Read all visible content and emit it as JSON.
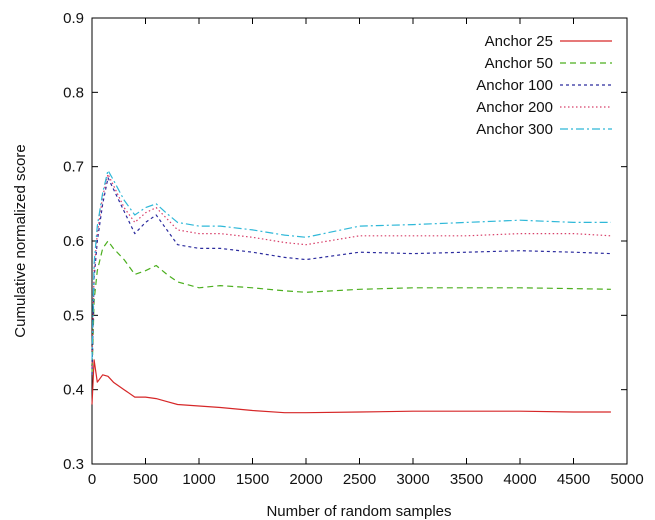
{
  "chart_data": {
    "type": "line",
    "title": "",
    "xlabel": "Number of random samples",
    "ylabel": "Cumulative normalized score",
    "xlim": [
      0,
      5000
    ],
    "ylim": [
      0.3,
      0.9
    ],
    "x_ticks": [
      0,
      500,
      1000,
      1500,
      2000,
      2500,
      3000,
      3500,
      4000,
      4500,
      5000
    ],
    "y_ticks": [
      0.3,
      0.4,
      0.5,
      0.6,
      0.7,
      0.8,
      0.9
    ],
    "grid": false,
    "legend_position": "top-right",
    "series": [
      {
        "name": "Anchor 25",
        "color": "#d62728",
        "dash": "solid",
        "x": [
          0,
          20,
          50,
          100,
          150,
          200,
          300,
          400,
          500,
          600,
          700,
          800,
          1000,
          1200,
          1500,
          1800,
          2000,
          2500,
          3000,
          3500,
          4000,
          4500,
          4850
        ],
        "y": [
          0.38,
          0.44,
          0.41,
          0.42,
          0.418,
          0.41,
          0.4,
          0.39,
          0.39,
          0.388,
          0.384,
          0.38,
          0.378,
          0.376,
          0.372,
          0.369,
          0.369,
          0.37,
          0.371,
          0.371,
          0.371,
          0.37,
          0.37
        ]
      },
      {
        "name": "Anchor 50",
        "color": "#4caf1f",
        "dash": "6,4",
        "x": [
          0,
          20,
          50,
          100,
          150,
          200,
          300,
          400,
          500,
          600,
          700,
          800,
          1000,
          1200,
          1500,
          1800,
          2000,
          2500,
          3000,
          3500,
          4000,
          4500,
          4850
        ],
        "y": [
          0.42,
          0.52,
          0.56,
          0.59,
          0.6,
          0.59,
          0.575,
          0.555,
          0.56,
          0.567,
          0.555,
          0.545,
          0.537,
          0.54,
          0.537,
          0.533,
          0.531,
          0.535,
          0.537,
          0.537,
          0.537,
          0.536,
          0.535
        ]
      },
      {
        "name": "Anchor 100",
        "color": "#2b2b9e",
        "dash": "3,3",
        "x": [
          0,
          20,
          50,
          100,
          150,
          200,
          300,
          400,
          500,
          600,
          700,
          800,
          1000,
          1200,
          1500,
          1800,
          2000,
          2500,
          3000,
          3500,
          4000,
          4500,
          4850
        ],
        "y": [
          0.42,
          0.55,
          0.6,
          0.65,
          0.685,
          0.67,
          0.64,
          0.61,
          0.625,
          0.635,
          0.615,
          0.595,
          0.59,
          0.59,
          0.585,
          0.578,
          0.575,
          0.585,
          0.583,
          0.585,
          0.587,
          0.585,
          0.583
        ]
      },
      {
        "name": "Anchor 200",
        "color": "#d8406a",
        "dash": "1.5,2.5",
        "x": [
          0,
          20,
          50,
          100,
          150,
          200,
          300,
          400,
          500,
          600,
          700,
          800,
          1000,
          1200,
          1500,
          1800,
          2000,
          2500,
          3000,
          3500,
          4000,
          4500,
          4850
        ],
        "y": [
          0.43,
          0.56,
          0.61,
          0.66,
          0.69,
          0.675,
          0.645,
          0.625,
          0.638,
          0.645,
          0.63,
          0.615,
          0.61,
          0.61,
          0.605,
          0.598,
          0.595,
          0.607,
          0.607,
          0.607,
          0.61,
          0.61,
          0.607
        ]
      },
      {
        "name": "Anchor 300",
        "color": "#2fb8d8",
        "dash": "8,3,2,3",
        "x": [
          0,
          20,
          50,
          100,
          150,
          200,
          300,
          400,
          500,
          600,
          700,
          800,
          1000,
          1200,
          1500,
          1800,
          2000,
          2500,
          3000,
          3500,
          4000,
          4500,
          4850
        ],
        "y": [
          0.44,
          0.57,
          0.62,
          0.665,
          0.695,
          0.682,
          0.655,
          0.635,
          0.645,
          0.65,
          0.637,
          0.625,
          0.62,
          0.62,
          0.615,
          0.608,
          0.605,
          0.62,
          0.622,
          0.625,
          0.628,
          0.625,
          0.625
        ]
      }
    ]
  }
}
